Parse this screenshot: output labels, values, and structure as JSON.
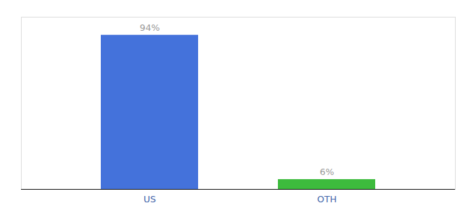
{
  "chart_data": {
    "type": "bar",
    "categories": [
      "US",
      "OTH"
    ],
    "values": [
      94,
      6
    ],
    "value_labels": [
      "94%",
      "6%"
    ],
    "colors": [
      "#4472db",
      "#3dbb3d"
    ],
    "ylim": [
      0,
      105
    ],
    "grid": false,
    "data_labels": true,
    "tick_labels": "x"
  }
}
